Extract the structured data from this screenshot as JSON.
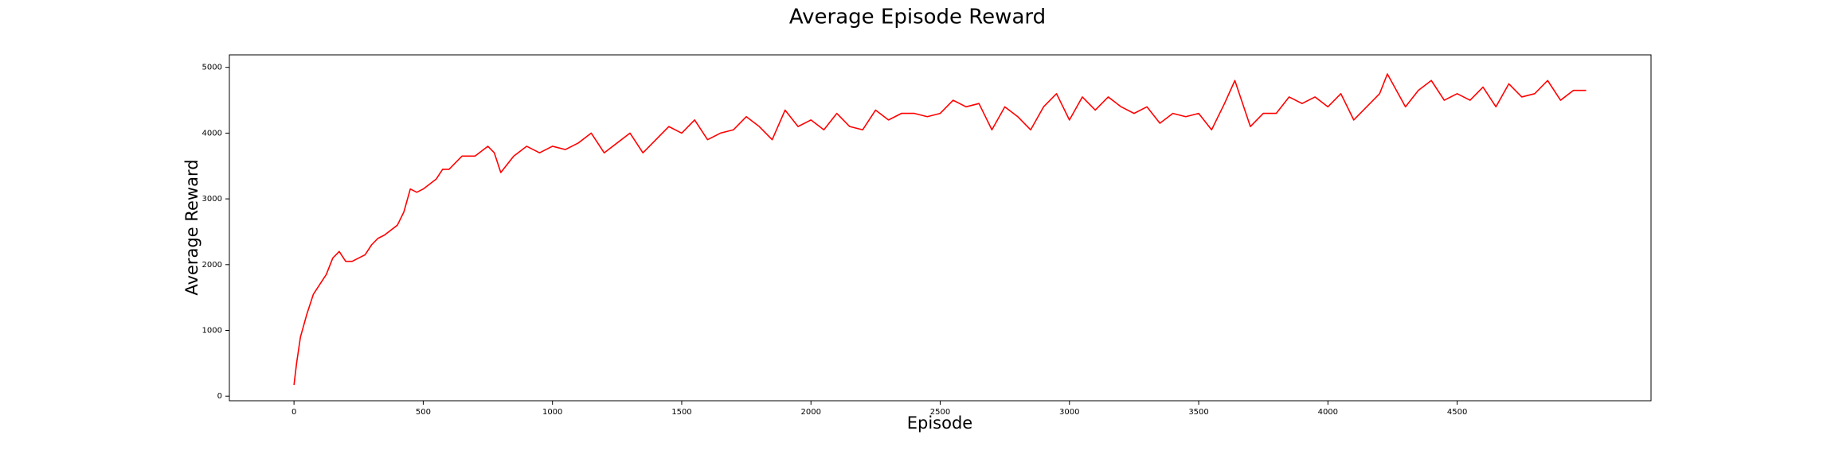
{
  "chart_data": {
    "type": "line",
    "title": "Average Episode Reward",
    "x_label": "Episode",
    "y_label": "Average Reward",
    "x": [
      0,
      10,
      25,
      50,
      75,
      100,
      125,
      150,
      175,
      200,
      225,
      250,
      275,
      300,
      325,
      350,
      400,
      425,
      450,
      475,
      500,
      550,
      575,
      600,
      650,
      700,
      750,
      775,
      800,
      850,
      900,
      950,
      1000,
      1050,
      1100,
      1150,
      1200,
      1250,
      1300,
      1350,
      1400,
      1450,
      1500,
      1550,
      1600,
      1650,
      1700,
      1750,
      1800,
      1850,
      1900,
      1950,
      2000,
      2050,
      2100,
      2150,
      2200,
      2250,
      2300,
      2350,
      2400,
      2450,
      2500,
      2550,
      2600,
      2650,
      2700,
      2750,
      2800,
      2850,
      2900,
      2950,
      3000,
      3050,
      3100,
      3150,
      3200,
      3250,
      3300,
      3350,
      3400,
      3450,
      3500,
      3550,
      3600,
      3640,
      3700,
      3750,
      3800,
      3850,
      3900,
      3950,
      4000,
      4050,
      4100,
      4150,
      4200,
      4230,
      4300,
      4350,
      4400,
      4450,
      4500,
      4550,
      4600,
      4650,
      4700,
      4750,
      4800,
      4850,
      4900,
      4950,
      4999
    ],
    "series": [
      {
        "name": "Average Reward",
        "color": "#ff0000",
        "values": [
          170,
          500,
          900,
          1250,
          1550,
          1700,
          1850,
          2100,
          2200,
          2050,
          2050,
          2100,
          2150,
          2300,
          2400,
          2450,
          2600,
          2800,
          3150,
          3100,
          3150,
          3300,
          3450,
          3450,
          3650,
          3650,
          3800,
          3700,
          3400,
          3650,
          3800,
          3700,
          3800,
          3750,
          3850,
          4000,
          3700,
          3850,
          4000,
          3700,
          3900,
          4100,
          4000,
          4200,
          3900,
          4000,
          4050,
          4250,
          4100,
          3900,
          4350,
          4100,
          4200,
          4050,
          4300,
          4100,
          4050,
          4350,
          4200,
          4300,
          4300,
          4250,
          4300,
          4500,
          4400,
          4450,
          4050,
          4400,
          4250,
          4050,
          4400,
          4600,
          4200,
          4550,
          4350,
          4550,
          4400,
          4300,
          4400,
          4150,
          4300,
          4250,
          4300,
          4050,
          4450,
          4800,
          4100,
          4300,
          4300,
          4550,
          4450,
          4550,
          4400,
          4600,
          4200,
          4400,
          4600,
          4900,
          4400,
          4650,
          4800,
          4500,
          4600,
          4500,
          4700,
          4400,
          4750,
          4550,
          4600,
          4800,
          4500,
          4650,
          4650
        ]
      }
    ],
    "xlim": [
      -250,
      5250
    ],
    "ylim": [
      -70,
      5190
    ],
    "xticks": [
      0,
      500,
      1000,
      1500,
      2000,
      2500,
      3000,
      3500,
      4000,
      4500
    ],
    "yticks": [
      0,
      1000,
      2000,
      3000,
      4000,
      5000
    ],
    "grid": false
  }
}
